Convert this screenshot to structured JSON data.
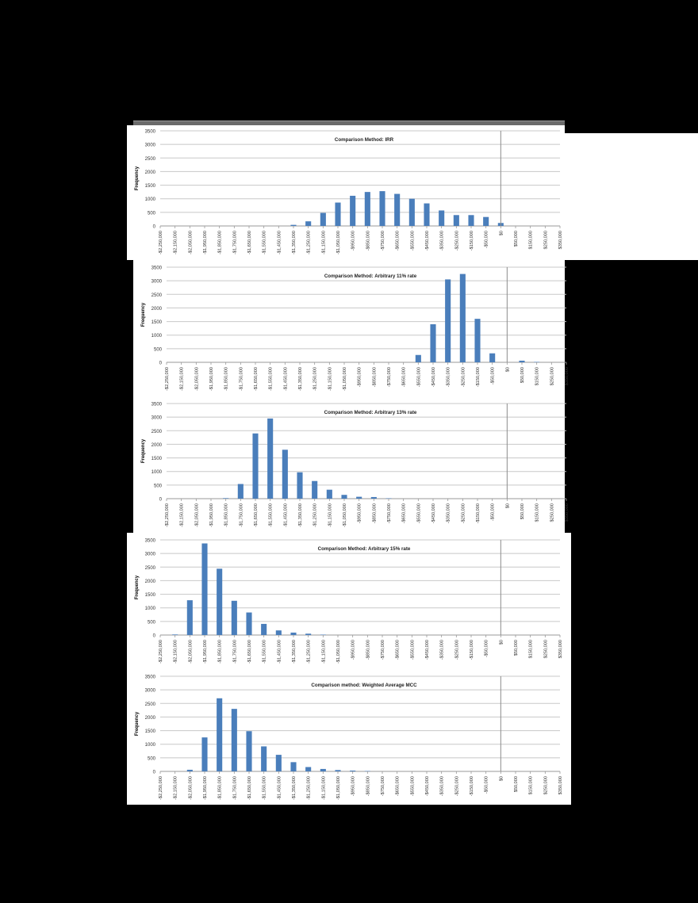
{
  "style": {
    "bar_color": "#4a7ebb",
    "grid_color": "#c8c8c8",
    "refline_color": "#8c8c8c",
    "text_color": "#333333"
  },
  "chart_data": [
    {
      "type": "bar",
      "title": "Comparison Method: IRR",
      "xlabel": "",
      "ylabel": "Frequency",
      "ylim": [
        0,
        3500
      ],
      "yticks": [
        0,
        500,
        1000,
        1500,
        2000,
        2500,
        3000,
        3500
      ],
      "grid": true,
      "reference_line_at": "$0",
      "categories": [
        "-$2,250,000",
        "-$2,150,000",
        "-$2,050,000",
        "-$1,950,000",
        "-$1,850,000",
        "-$1,750,000",
        "-$1,650,000",
        "-$1,550,000",
        "-$1,450,000",
        "-$1,350,000",
        "-$1,250,000",
        "-$1,150,000",
        "-$1,050,000",
        "-$950,000",
        "-$850,000",
        "-$750,000",
        "-$650,000",
        "-$550,000",
        "-$450,000",
        "-$350,000",
        "-$250,000",
        "-$150,000",
        "-$50,000",
        "$0",
        "$50,000",
        "$150,000",
        "$250,000",
        "$350,000"
      ],
      "values": [
        0,
        0,
        0,
        0,
        0,
        0,
        0,
        0,
        0,
        40,
        170,
        480,
        860,
        1110,
        1250,
        1280,
        1180,
        1000,
        830,
        570,
        400,
        400,
        330,
        110,
        0,
        0,
        0,
        0
      ]
    },
    {
      "type": "bar",
      "title": "Comparison Method: Arbitrary 11% rate",
      "xlabel": "",
      "ylabel": "Frequency",
      "ylim": [
        0,
        3500
      ],
      "yticks": [
        0,
        500,
        1000,
        1500,
        2000,
        2500,
        3000,
        3500
      ],
      "grid": true,
      "reference_line_at": "$0",
      "categories": [
        "-$2,250,000",
        "-$2,150,000",
        "-$2,050,000",
        "-$1,950,000",
        "-$1,850,000",
        "-$1,750,000",
        "-$1,650,000",
        "-$1,550,000",
        "-$1,450,000",
        "-$1,350,000",
        "-$1,250,000",
        "-$1,150,000",
        "-$1,050,000",
        "-$950,000",
        "-$850,000",
        "-$750,000",
        "-$650,000",
        "-$550,000",
        "-$450,000",
        "-$350,000",
        "-$250,000",
        "-$150,000",
        "-$50,000",
        "$0",
        "$50,000",
        "$150,000",
        "$250,000",
        "$350,000"
      ],
      "values": [
        0,
        0,
        0,
        0,
        0,
        0,
        0,
        0,
        0,
        0,
        0,
        0,
        0,
        0,
        0,
        0,
        0,
        270,
        1400,
        3050,
        3250,
        1600,
        330,
        0,
        60,
        15,
        0,
        0
      ]
    },
    {
      "type": "bar",
      "title": "Comparison Method: Arbitrary 13% rate",
      "xlabel": "",
      "ylabel": "Frequency",
      "ylim": [
        0,
        3500
      ],
      "yticks": [
        0,
        500,
        1000,
        1500,
        2000,
        2500,
        3000,
        3500
      ],
      "grid": true,
      "reference_line_at": "$0",
      "categories": [
        "-$2,250,000",
        "-$2,150,000",
        "-$2,050,000",
        "-$1,950,000",
        "-$1,850,000",
        "-$1,750,000",
        "-$1,650,000",
        "-$1,550,000",
        "-$1,450,000",
        "-$1,350,000",
        "-$1,250,000",
        "-$1,150,000",
        "-$1,050,000",
        "-$950,000",
        "-$850,000",
        "-$750,000",
        "-$650,000",
        "-$550,000",
        "-$450,000",
        "-$350,000",
        "-$250,000",
        "-$150,000",
        "-$50,000",
        "$0",
        "$50,000",
        "$150,000",
        "$250,000",
        "$350,000"
      ],
      "values": [
        0,
        0,
        0,
        0,
        20,
        540,
        2400,
        2950,
        1800,
        970,
        650,
        330,
        140,
        70,
        60,
        15,
        0,
        0,
        0,
        0,
        0,
        0,
        0,
        0,
        0,
        0,
        0,
        0
      ]
    },
    {
      "type": "bar",
      "title": "Comparison Method: Arbitrary 15% rate",
      "xlabel": "",
      "ylabel": "Frequency",
      "ylim": [
        0,
        3500
      ],
      "yticks": [
        0,
        500,
        1000,
        1500,
        2000,
        2500,
        3000,
        3500
      ],
      "grid": true,
      "reference_line_at": "$0",
      "categories": [
        "-$2,250,000",
        "-$2,150,000",
        "-$2,050,000",
        "-$1,950,000",
        "-$1,850,000",
        "-$1,750,000",
        "-$1,650,000",
        "-$1,550,000",
        "-$1,450,000",
        "-$1,350,000",
        "-$1,250,000",
        "-$1,150,000",
        "-$1,050,000",
        "-$950,000",
        "-$850,000",
        "-$750,000",
        "-$650,000",
        "-$550,000",
        "-$450,000",
        "-$350,000",
        "-$250,000",
        "-$150,000",
        "-$50,000",
        "$0",
        "$50,000",
        "$150,000",
        "$250,000",
        "$350,000"
      ],
      "values": [
        0,
        20,
        1280,
        3370,
        2440,
        1260,
        830,
        410,
        170,
        90,
        50,
        15,
        0,
        0,
        0,
        0,
        0,
        0,
        0,
        0,
        0,
        0,
        0,
        0,
        0,
        0,
        0,
        0
      ]
    },
    {
      "type": "bar",
      "title": "Comparison method: Weighted Average MCC",
      "xlabel": "",
      "ylabel": "Frequency",
      "ylim": [
        0,
        3500
      ],
      "yticks": [
        0,
        500,
        1000,
        1500,
        2000,
        2500,
        3000,
        3500
      ],
      "grid": true,
      "reference_line_at": "$0",
      "categories": [
        "-$2,250,000",
        "-$2,150,000",
        "-$2,050,000",
        "-$1,950,000",
        "-$1,850,000",
        "-$1,750,000",
        "-$1,650,000",
        "-$1,550,000",
        "-$1,450,000",
        "-$1,350,000",
        "-$1,250,000",
        "-$1,150,000",
        "-$1,050,000",
        "-$950,000",
        "-$850,000",
        "-$750,000",
        "-$650,000",
        "-$550,000",
        "-$450,000",
        "-$350,000",
        "-$250,000",
        "-$150,000",
        "-$50,000",
        "$0",
        "$50,000",
        "$150,000",
        "$250,000",
        "$350,000"
      ],
      "values": [
        0,
        0,
        60,
        1250,
        2690,
        2300,
        1480,
        920,
        610,
        340,
        160,
        90,
        50,
        30,
        15,
        0,
        0,
        0,
        0,
        0,
        0,
        0,
        0,
        0,
        0,
        0,
        0,
        0
      ]
    }
  ]
}
